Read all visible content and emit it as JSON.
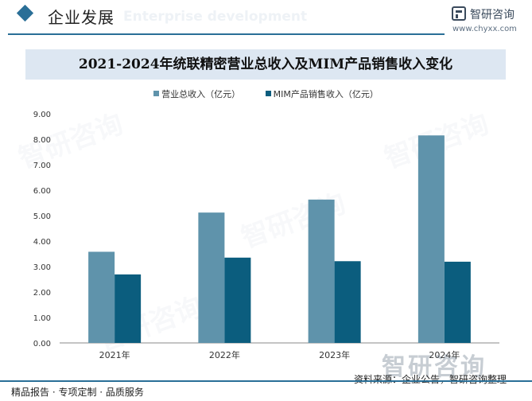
{
  "colors": {
    "accent": "#2a6f97",
    "series_total": "#5f93ab",
    "series_mim": "#0b5d7e",
    "axis": "#888888"
  },
  "header": {
    "section_title": "企业发展",
    "section_subtitle": "Enterprise development",
    "brand_name": "智研咨询",
    "brand_url": "www.chyxx.com",
    "logo_icon": "chyxx-logo-icon"
  },
  "chart_data": {
    "type": "bar",
    "title": "2021-2024年统联精密营业总收入及MIM产品销售收入变化",
    "categories": [
      "2021年",
      "2022年",
      "2023年",
      "2024年"
    ],
    "series": [
      {
        "name": "营业总收入（亿元）",
        "values": [
          3.58,
          5.12,
          5.63,
          8.15
        ]
      },
      {
        "name": "MIM产品销售收入（亿元）",
        "values": [
          2.69,
          3.35,
          3.21,
          3.19
        ]
      }
    ],
    "yticks": [
      "0.00",
      "1.00",
      "2.00",
      "3.00",
      "4.00",
      "5.00",
      "6.00",
      "7.00",
      "8.00",
      "9.00"
    ],
    "ylim": [
      0,
      9
    ],
    "legend_position": "top-center",
    "grid": false
  },
  "footer": {
    "left": "精品报告 · 专项定制 · 品质服务",
    "right": "资料来源：企业公告，智研咨询整理",
    "watermark": "智研咨询"
  }
}
